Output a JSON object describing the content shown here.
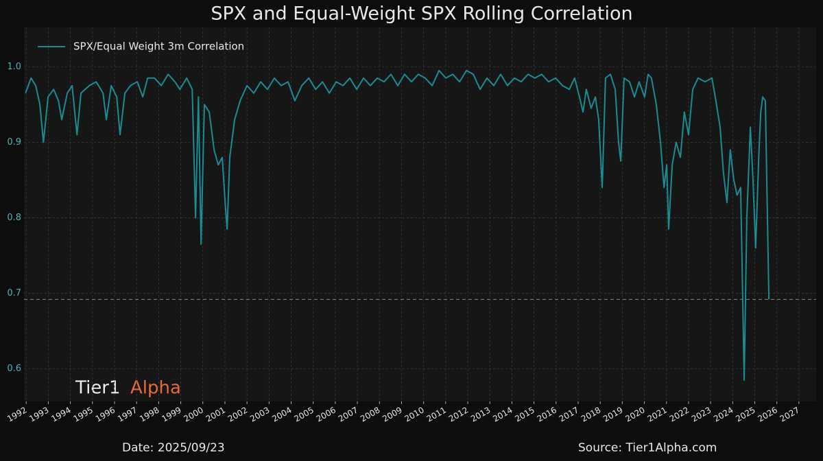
{
  "chart_data": {
    "type": "line",
    "title": "SPX and Equal-Weight SPX Rolling Correlation",
    "x": [
      1991.97,
      1992.22,
      1992.43,
      1992.62,
      1992.78,
      1992.99,
      1993.24,
      1993.46,
      1993.61,
      1993.86,
      1994.08,
      1994.3,
      1994.48,
      1994.86,
      1995.17,
      1995.48,
      1995.63,
      1995.85,
      1996.1,
      1996.25,
      1996.47,
      1996.72,
      1997.03,
      1997.28,
      1997.5,
      1997.81,
      1998.12,
      1998.43,
      1998.74,
      1998.96,
      1999.27,
      1999.52,
      1999.67,
      1999.8,
      1999.92,
      2000.07,
      2000.29,
      2000.51,
      2000.7,
      2000.88,
      2001.01,
      2001.1,
      2001.22,
      2001.44,
      2001.69,
      2002.0,
      2002.31,
      2002.62,
      2002.93,
      2003.24,
      2003.55,
      2003.86,
      2004.17,
      2004.48,
      2004.8,
      2005.11,
      2005.42,
      2005.73,
      2006.04,
      2006.35,
      2006.66,
      2006.97,
      2007.28,
      2007.59,
      2007.9,
      2008.21,
      2008.52,
      2008.83,
      2009.14,
      2009.45,
      2009.76,
      2010.07,
      2010.39,
      2010.7,
      2011.01,
      2011.32,
      2011.63,
      2011.94,
      2012.25,
      2012.56,
      2012.87,
      2013.18,
      2013.49,
      2013.8,
      2014.11,
      2014.42,
      2014.73,
      2015.04,
      2015.35,
      2015.66,
      2015.98,
      2016.29,
      2016.6,
      2016.84,
      2017.06,
      2017.22,
      2017.37,
      2017.59,
      2017.78,
      2017.93,
      2018.09,
      2018.24,
      2018.46,
      2018.68,
      2018.83,
      2018.93,
      2019.08,
      2019.33,
      2019.55,
      2019.76,
      2020.01,
      2020.17,
      2020.32,
      2020.54,
      2020.73,
      2020.89,
      2021.01,
      2021.1,
      2021.26,
      2021.44,
      2021.63,
      2021.81,
      2022.0,
      2022.19,
      2022.43,
      2022.75,
      2023.06,
      2023.21,
      2023.43,
      2023.58,
      2023.74,
      2023.89,
      2024.05,
      2024.2,
      2024.36,
      2024.45,
      2024.52,
      2024.64,
      2024.8,
      2024.92,
      2025.04,
      2025.18,
      2025.27,
      2025.36,
      2025.48,
      2025.55,
      2025.64
    ],
    "series": [
      {
        "name": "SPX/Equal Weight 3m Correlation",
        "color": "#1b8c91",
        "values": [
          0.965,
          0.985,
          0.975,
          0.95,
          0.9,
          0.96,
          0.97,
          0.955,
          0.93,
          0.965,
          0.975,
          0.91,
          0.965,
          0.975,
          0.98,
          0.965,
          0.93,
          0.975,
          0.96,
          0.91,
          0.965,
          0.975,
          0.98,
          0.96,
          0.985,
          0.985,
          0.975,
          0.99,
          0.98,
          0.97,
          0.985,
          0.97,
          0.8,
          0.96,
          0.765,
          0.95,
          0.94,
          0.89,
          0.87,
          0.88,
          0.82,
          0.785,
          0.88,
          0.93,
          0.955,
          0.975,
          0.965,
          0.98,
          0.97,
          0.985,
          0.975,
          0.98,
          0.955,
          0.975,
          0.985,
          0.97,
          0.98,
          0.965,
          0.98,
          0.975,
          0.985,
          0.97,
          0.985,
          0.975,
          0.985,
          0.98,
          0.99,
          0.975,
          0.99,
          0.98,
          0.99,
          0.985,
          0.975,
          0.995,
          0.985,
          0.99,
          0.98,
          0.995,
          0.99,
          0.97,
          0.985,
          0.975,
          0.99,
          0.975,
          0.985,
          0.98,
          0.99,
          0.985,
          0.99,
          0.98,
          0.985,
          0.975,
          0.97,
          0.985,
          0.96,
          0.94,
          0.97,
          0.945,
          0.96,
          0.93,
          0.84,
          0.985,
          0.99,
          0.97,
          0.9,
          0.875,
          0.985,
          0.98,
          0.96,
          0.98,
          0.96,
          0.99,
          0.985,
          0.95,
          0.9,
          0.84,
          0.87,
          0.785,
          0.87,
          0.9,
          0.88,
          0.94,
          0.91,
          0.97,
          0.985,
          0.98,
          0.985,
          0.96,
          0.92,
          0.86,
          0.82,
          0.89,
          0.85,
          0.83,
          0.84,
          0.7,
          0.585,
          0.8,
          0.92,
          0.85,
          0.76,
          0.88,
          0.94,
          0.96,
          0.955,
          0.84,
          0.692
        ]
      }
    ],
    "xlim": [
      1991.9,
      2027.78
    ],
    "xticks": [
      1992,
      1993,
      1994,
      1995,
      1996,
      1997,
      1998,
      1999,
      2000,
      2001,
      2002,
      2003,
      2004,
      2005,
      2006,
      2007,
      2008,
      2009,
      2010,
      2011,
      2012,
      2013,
      2014,
      2015,
      2016,
      2017,
      2018,
      2019,
      2020,
      2021,
      2022,
      2023,
      2024,
      2025,
      2026,
      2027
    ],
    "ylim": [
      0.557,
      1.052
    ],
    "yticks": [
      0.6,
      0.7,
      0.8,
      0.9,
      {
        "value": 1,
        "label": "1.0"
      }
    ],
    "grid": true,
    "legend": "upper left",
    "watermark": {
      "part1": "Tier1",
      "part2": "Alpha"
    },
    "date_note": "Date: 2025/09/23",
    "source_note": "Source: Tier1Alpha.com"
  }
}
